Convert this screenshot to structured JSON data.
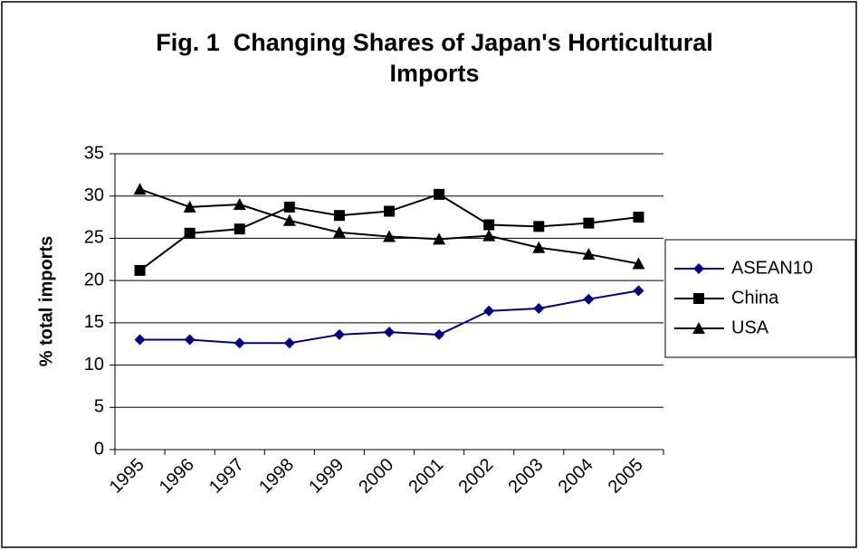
{
  "chart_data": {
    "type": "line",
    "title": "Fig. 1  Changing Shares of Japan's Horticultural Imports",
    "y_label": "% total imports",
    "categories": [
      "1995",
      "1996",
      "1997",
      "1998",
      "1999",
      "2000",
      "2001",
      "2002",
      "2003",
      "2004",
      "2005"
    ],
    "series": [
      {
        "name": "ASEAN10",
        "color": "#000080",
        "marker": "diamond",
        "values": [
          13.0,
          13.0,
          12.6,
          12.6,
          13.6,
          13.9,
          13.6,
          16.4,
          16.7,
          17.8,
          18.8
        ]
      },
      {
        "name": "China",
        "color": "#000000",
        "marker": "square",
        "values": [
          21.2,
          25.6,
          26.1,
          28.7,
          27.7,
          28.2,
          30.2,
          26.6,
          26.4,
          26.8,
          27.5
        ]
      },
      {
        "name": "USA",
        "color": "#000000",
        "marker": "triangle",
        "values": [
          30.8,
          28.7,
          29.0,
          27.1,
          25.7,
          25.2,
          24.9,
          25.3,
          23.9,
          23.1,
          22.0
        ]
      }
    ],
    "ylim": [
      0,
      35
    ],
    "yticks": [
      0,
      5,
      10,
      15,
      20,
      25,
      30,
      35
    ],
    "grid": true,
    "legend": "right"
  }
}
